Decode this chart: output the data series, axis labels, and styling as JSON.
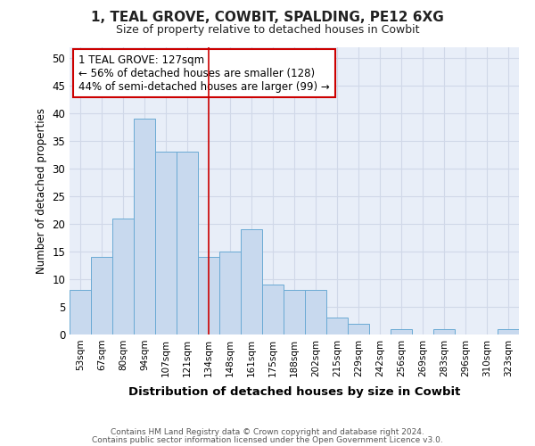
{
  "title": "1, TEAL GROVE, COWBIT, SPALDING, PE12 6XG",
  "subtitle": "Size of property relative to detached houses in Cowbit",
  "xlabel": "Distribution of detached houses by size in Cowbit",
  "ylabel": "Number of detached properties",
  "categories": [
    "53sqm",
    "67sqm",
    "80sqm",
    "94sqm",
    "107sqm",
    "121sqm",
    "134sqm",
    "148sqm",
    "161sqm",
    "175sqm",
    "188sqm",
    "202sqm",
    "215sqm",
    "229sqm",
    "242sqm",
    "256sqm",
    "269sqm",
    "283sqm",
    "296sqm",
    "310sqm",
    "323sqm"
  ],
  "values": [
    8,
    14,
    21,
    39,
    33,
    33,
    14,
    15,
    19,
    9,
    8,
    8,
    3,
    2,
    0,
    1,
    0,
    1,
    0,
    0,
    1
  ],
  "bar_color": "#c8d9ee",
  "bar_edge_color": "#6aaad4",
  "vertical_line_x": 6.0,
  "vline_color": "#cc0000",
  "annotation_line1": "1 TEAL GROVE: 127sqm",
  "annotation_line2": "← 56% of detached houses are smaller (128)",
  "annotation_line3": "44% of semi-detached houses are larger (99) →",
  "annotation_box_color": "#ffffff",
  "annotation_box_edge_color": "#cc0000",
  "ylim": [
    0,
    52
  ],
  "yticks": [
    0,
    5,
    10,
    15,
    20,
    25,
    30,
    35,
    40,
    45,
    50
  ],
  "grid_color": "#d0d8e8",
  "footer_line1": "Contains HM Land Registry data © Crown copyright and database right 2024.",
  "footer_line2": "Contains public sector information licensed under the Open Government Licence v3.0.",
  "bg_color": "#ffffff",
  "plot_bg_color": "#e8eef8"
}
